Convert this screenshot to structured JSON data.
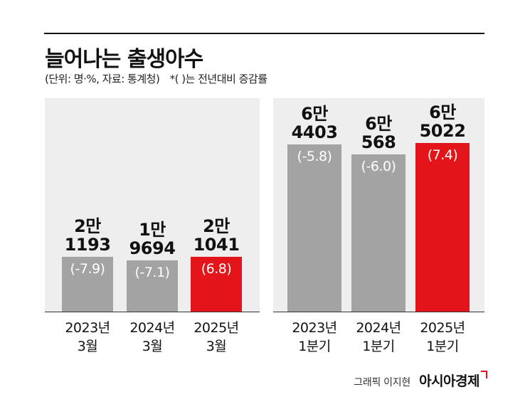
{
  "header": {
    "title": "늘어나는 출생아수",
    "subtitle": "(단위: 명·%, 자료: 통계청)",
    "note": "*( )는 전년대비 증감률"
  },
  "colors": {
    "gray_bar": "#a3a3a3",
    "highlight_bar": "#e3151a",
    "panel_bg": "#eeeeee"
  },
  "chart_data": [
    {
      "type": "bar",
      "title": "",
      "categories": [
        "2023년 3월",
        "2024년 3월",
        "2025년 3월"
      ],
      "category_lines": [
        [
          "2023년",
          "3월"
        ],
        [
          "2024년",
          "3월"
        ],
        [
          "2025년",
          "3월"
        ]
      ],
      "values": [
        21193,
        19694,
        21041
      ],
      "value_labels": [
        [
          "2만",
          "1193"
        ],
        [
          "1만",
          "9694"
        ],
        [
          "2만",
          "1041"
        ]
      ],
      "changes": [
        "(-7.9)",
        "(-7.1)",
        "(6.8)"
      ],
      "highlight_index": 2,
      "ylim": [
        0,
        70000
      ],
      "grid": false
    },
    {
      "type": "bar",
      "title": "",
      "categories": [
        "2023년 1분기",
        "2024년 1분기",
        "2025년 1분기"
      ],
      "category_lines": [
        [
          "2023년",
          "1분기"
        ],
        [
          "2024년",
          "1분기"
        ],
        [
          "2025년",
          "1분기"
        ]
      ],
      "values": [
        64403,
        60568,
        65022
      ],
      "value_labels": [
        [
          "6만",
          "4403"
        ],
        [
          "6만",
          "568"
        ],
        [
          "6만",
          "5022"
        ]
      ],
      "changes": [
        "(-5.8)",
        "(-6.0)",
        "(7.4)"
      ],
      "highlight_index": 2,
      "ylim": [
        0,
        70000
      ],
      "grid": false
    }
  ],
  "footer": {
    "credit": "그래픽 이지현",
    "brand": "아시아경제"
  }
}
